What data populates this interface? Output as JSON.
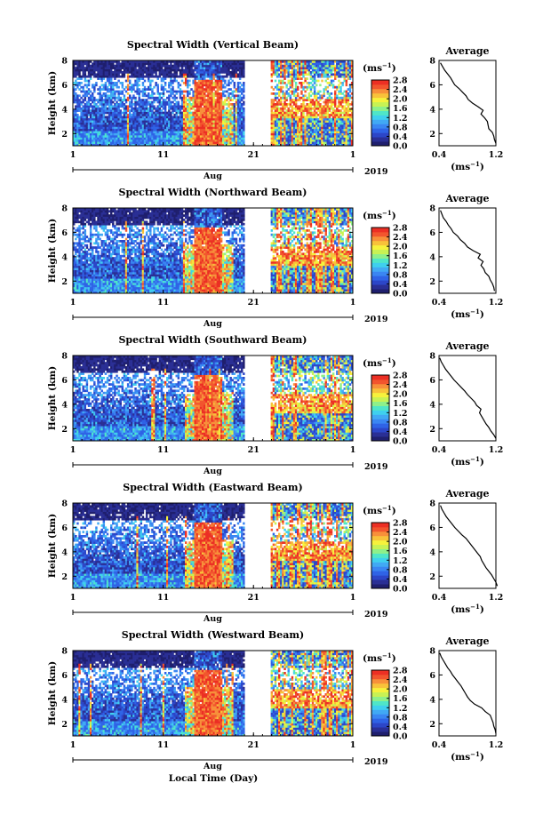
{
  "figure": {
    "common_xlabel": "Local Time (Day)",
    "cmap": [
      "#1f1f6e",
      "#2a2f95",
      "#2c46c8",
      "#2f63e6",
      "#3a86f2",
      "#41a9f4",
      "#3fd0ee",
      "#4fe6c8",
      "#8ef08a",
      "#c8f254",
      "#f6f23c",
      "#f8c23a",
      "#f7903a",
      "#f2552e",
      "#ec2f24"
    ]
  },
  "chart_data": [
    {
      "type": "heatmap",
      "title": "Spectral Width (Vertical Beam)",
      "ylabel": "Height (km)",
      "y_ticks": [
        "8",
        "6",
        "4",
        "2"
      ],
      "ylim": [
        1,
        8
      ],
      "x_ticks": [
        "1",
        "11",
        "21",
        "1"
      ],
      "xlim": [
        1,
        32
      ],
      "x_bar_label": "Aug",
      "year": "2019",
      "data_gap_days": [
        20,
        23
      ],
      "colorbar": {
        "unit": "(ms⁻¹)",
        "ticks": [
          "2.8",
          "2.4",
          "2.0",
          "1.6",
          "1.2",
          "0.8",
          "0.4",
          "0.0"
        ],
        "range": [
          0.0,
          2.8
        ]
      },
      "average": {
        "title": "Average",
        "xlabel": "(ms⁻¹)",
        "x_ticks": [
          "0.4",
          "1.2"
        ],
        "xlim": [
          0.4,
          1.2
        ],
        "y_ticks": [
          "8",
          "6",
          "4",
          "2"
        ],
        "ylim": [
          1,
          8
        ],
        "heights_km": [
          1.2,
          1.5,
          1.8,
          2.1,
          2.4,
          2.7,
          3.0,
          3.3,
          3.6,
          3.9,
          4.2,
          4.5,
          4.8,
          5.1,
          5.4,
          5.7,
          6.0,
          6.3,
          6.6,
          6.9,
          7.2,
          7.5,
          7.8
        ],
        "values": [
          1.2,
          1.18,
          1.17,
          1.15,
          1.1,
          1.09,
          1.08,
          1.04,
          0.99,
          1.02,
          0.95,
          0.87,
          0.81,
          0.78,
          0.73,
          0.68,
          0.62,
          0.59,
          0.56,
          0.52,
          0.48,
          0.45,
          0.42
        ]
      }
    },
    {
      "type": "heatmap",
      "title": "Spectral Width (Northward Beam)",
      "ylabel": "Height (km)",
      "y_ticks": [
        "8",
        "6",
        "4",
        "2"
      ],
      "ylim": [
        1,
        8
      ],
      "x_ticks": [
        "1",
        "11",
        "21",
        "1"
      ],
      "xlim": [
        1,
        32
      ],
      "x_bar_label": "Aug",
      "year": "2019",
      "data_gap_days": [
        20,
        23
      ],
      "colorbar": {
        "unit": "(ms⁻¹)",
        "ticks": [
          "2.8",
          "2.4",
          "2.0",
          "1.6",
          "1.2",
          "0.8",
          "0.4",
          "0.0"
        ],
        "range": [
          0.0,
          2.8
        ]
      },
      "average": {
        "title": "Average",
        "xlabel": "(ms⁻¹)",
        "x_ticks": [
          "0.4",
          "1.2"
        ],
        "xlim": [
          0.4,
          1.2
        ],
        "y_ticks": [
          "8",
          "6",
          "4",
          "2"
        ],
        "ylim": [
          1,
          8
        ],
        "heights_km": [
          1.2,
          1.5,
          1.8,
          2.1,
          2.4,
          2.7,
          3.0,
          3.3,
          3.6,
          3.9,
          4.2,
          4.5,
          4.8,
          5.1,
          5.4,
          5.7,
          6.0,
          6.3,
          6.6,
          6.9,
          7.2,
          7.5,
          7.8
        ],
        "values": [
          1.18,
          1.17,
          1.15,
          1.12,
          1.1,
          1.05,
          1.03,
          0.99,
          1.02,
          0.95,
          0.98,
          0.88,
          0.8,
          0.76,
          0.7,
          0.66,
          0.6,
          0.57,
          0.53,
          0.5,
          0.46,
          0.44,
          0.42
        ]
      }
    },
    {
      "type": "heatmap",
      "title": "Spectral Width (Southward Beam)",
      "ylabel": "Height (km)",
      "y_ticks": [
        "8",
        "6",
        "4",
        "2"
      ],
      "ylim": [
        1,
        8
      ],
      "x_ticks": [
        "1",
        "11",
        "21",
        "1"
      ],
      "xlim": [
        1,
        32
      ],
      "x_bar_label": "Aug",
      "year": "2019",
      "data_gap_days": [
        20,
        23
      ],
      "colorbar": {
        "unit": "(ms⁻¹)",
        "ticks": [
          "2.8",
          "2.4",
          "2.0",
          "1.6",
          "1.2",
          "0.8",
          "0.4",
          "0.0"
        ],
        "range": [
          0.0,
          2.8
        ]
      },
      "average": {
        "title": "Average",
        "xlabel": "(ms⁻¹)",
        "x_ticks": [
          "0.4",
          "1.2"
        ],
        "xlim": [
          0.4,
          1.2
        ],
        "y_ticks": [
          "8",
          "6",
          "4",
          "2"
        ],
        "ylim": [
          1,
          8
        ],
        "heights_km": [
          1.2,
          1.5,
          1.8,
          2.1,
          2.4,
          2.7,
          3.0,
          3.3,
          3.6,
          3.9,
          4.2,
          4.5,
          4.8,
          5.1,
          5.4,
          5.7,
          6.0,
          6.3,
          6.6,
          6.9,
          7.2,
          7.5,
          7.8
        ],
        "values": [
          1.2,
          1.17,
          1.13,
          1.1,
          1.06,
          1.03,
          1.0,
          0.97,
          0.99,
          0.93,
          0.9,
          0.85,
          0.8,
          0.76,
          0.71,
          0.66,
          0.61,
          0.57,
          0.53,
          0.49,
          0.46,
          0.43,
          0.41
        ]
      }
    },
    {
      "type": "heatmap",
      "title": "Spectral Width (Eastward Beam)",
      "ylabel": "Height (km)",
      "y_ticks": [
        "8",
        "6",
        "4",
        "2"
      ],
      "ylim": [
        1,
        8
      ],
      "x_ticks": [
        "1",
        "11",
        "21",
        "1"
      ],
      "xlim": [
        1,
        32
      ],
      "x_bar_label": "Aug",
      "year": "2019",
      "data_gap_days": [
        20,
        23
      ],
      "colorbar": {
        "unit": "(ms⁻¹)",
        "ticks": [
          "2.8",
          "2.4",
          "2.0",
          "1.6",
          "1.2",
          "0.8",
          "0.4",
          "0.0"
        ],
        "range": [
          0.0,
          2.8
        ]
      },
      "average": {
        "title": "Average",
        "xlabel": "(ms⁻¹)",
        "x_ticks": [
          "0.4",
          "1.2"
        ],
        "xlim": [
          0.4,
          1.2
        ],
        "y_ticks": [
          "8",
          "6",
          "4",
          "2"
        ],
        "ylim": [
          1,
          8
        ],
        "heights_km": [
          1.2,
          1.5,
          1.8,
          2.1,
          2.4,
          2.7,
          3.0,
          3.3,
          3.6,
          3.9,
          4.2,
          4.5,
          4.8,
          5.1,
          5.4,
          5.7,
          6.0,
          6.3,
          6.6,
          6.9,
          7.2,
          7.5,
          7.8
        ],
        "values": [
          1.22,
          1.2,
          1.17,
          1.14,
          1.1,
          1.06,
          1.03,
          1.0,
          0.98,
          0.94,
          0.9,
          0.86,
          0.82,
          0.78,
          0.72,
          0.67,
          0.62,
          0.58,
          0.54,
          0.5,
          0.47,
          0.44,
          0.42
        ]
      }
    },
    {
      "type": "heatmap",
      "title": "Spectral Width (Westward Beam)",
      "ylabel": "Height (km)",
      "y_ticks": [
        "8",
        "6",
        "4",
        "2"
      ],
      "ylim": [
        1,
        8
      ],
      "x_ticks": [
        "1",
        "11",
        "21",
        "1"
      ],
      "xlim": [
        1,
        32
      ],
      "x_bar_label": "Aug",
      "year": "2019",
      "data_gap_days": [
        20,
        23
      ],
      "colorbar": {
        "unit": "(ms⁻¹)",
        "ticks": [
          "2.8",
          "2.4",
          "2.0",
          "1.6",
          "1.2",
          "0.8",
          "0.4",
          "0.0"
        ],
        "range": [
          0.0,
          2.8
        ]
      },
      "average": {
        "title": "Average",
        "xlabel": "(ms⁻¹)",
        "x_ticks": [
          "0.4",
          "1.2"
        ],
        "xlim": [
          0.4,
          1.2
        ],
        "y_ticks": [
          "8",
          "6",
          "4",
          "2"
        ],
        "ylim": [
          1,
          8
        ],
        "heights_km": [
          1.2,
          1.5,
          1.8,
          2.1,
          2.4,
          2.7,
          3.0,
          3.3,
          3.6,
          3.9,
          4.2,
          4.5,
          4.8,
          5.1,
          5.4,
          5.7,
          6.0,
          6.3,
          6.6,
          6.9,
          7.2,
          7.5,
          7.8
        ],
        "values": [
          1.2,
          1.19,
          1.17,
          1.16,
          1.14,
          1.12,
          1.05,
          1.0,
          0.9,
          0.84,
          0.8,
          0.77,
          0.74,
          0.71,
          0.67,
          0.63,
          0.59,
          0.56,
          0.52,
          0.49,
          0.46,
          0.43,
          0.41
        ]
      }
    }
  ]
}
